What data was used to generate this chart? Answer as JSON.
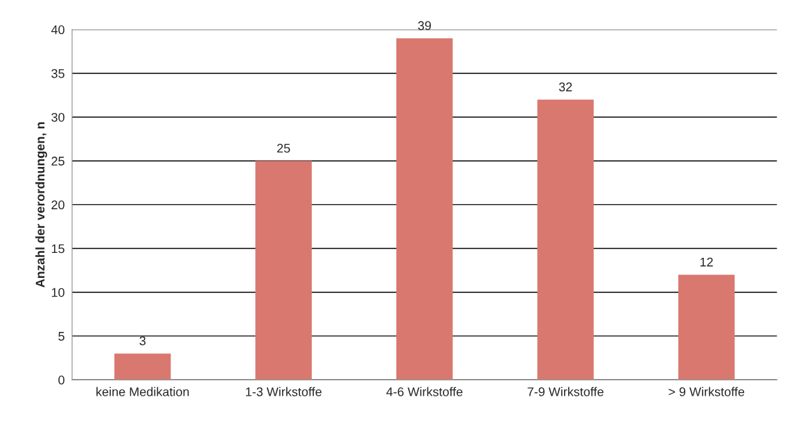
{
  "chart_data": {
    "type": "bar",
    "ylabel": "Anzahl der verordnungen, n",
    "categories": [
      "keine Medikation",
      "1-3 Wirkstoffe",
      "4-6 Wirkstoffe",
      "7-9 Wirkstoffe",
      "> 9 Wirkstoffe"
    ],
    "values": [
      3,
      25,
      39,
      32,
      12
    ],
    "color": "#d9786f",
    "ylim": [
      0,
      40
    ],
    "yticks": [
      0,
      5,
      10,
      15,
      20,
      25,
      30,
      35,
      40
    ],
    "grid": "y",
    "data_labels": true
  }
}
